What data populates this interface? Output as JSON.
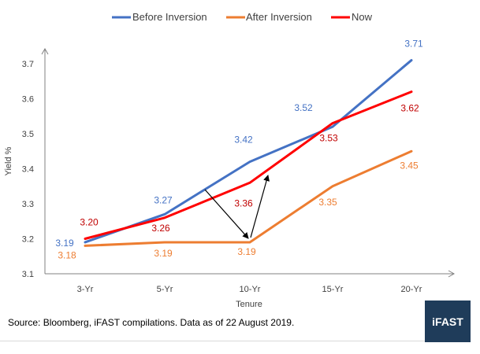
{
  "chart_data": {
    "type": "line",
    "title": "",
    "xlabel": "Tenure",
    "ylabel": "Yield %",
    "categories": [
      "3-Yr",
      "5-Yr",
      "10-Yr",
      "15-Yr",
      "20-Yr"
    ],
    "ylim": [
      3.1,
      3.75
    ],
    "yticks": [
      "3.1",
      "3.2",
      "3.3",
      "3.4",
      "3.5",
      "3.6",
      "3.7"
    ],
    "grid": false,
    "legend_position": "top",
    "series": [
      {
        "name": "Before Inversion",
        "color": "#4472c4",
        "values": [
          3.19,
          3.27,
          3.42,
          3.52,
          3.71
        ],
        "labels": [
          "3.19",
          "3.27",
          "3.42",
          "3.52",
          "3.71"
        ]
      },
      {
        "name": "After Inversion",
        "color": "#ed7d31",
        "values": [
          3.18,
          3.19,
          3.19,
          3.35,
          3.45
        ],
        "labels": [
          "3.18",
          "3.19",
          "3.19",
          "3.35",
          "3.45"
        ]
      },
      {
        "name": "Now",
        "color": "#ff0000",
        "values": [
          3.2,
          3.26,
          3.36,
          3.53,
          3.62
        ],
        "labels": [
          "3.20",
          "3.26",
          "3.36",
          "3.53",
          "3.62"
        ]
      }
    ],
    "annotations": [
      {
        "type": "arrow",
        "from": {
          "x": "5-Yr",
          "y": 3.35
        },
        "to": {
          "x": "10-Yr",
          "y": 3.19
        }
      },
      {
        "type": "arrow",
        "from": {
          "x": "10-Yr",
          "y": 3.19
        },
        "to": {
          "x": "10-Yr",
          "y": 3.38
        }
      }
    ]
  },
  "footer": {
    "source": "Source: Bloomberg, iFAST compilations. Data as of 22 August 2019.",
    "logo": "iFAST"
  }
}
